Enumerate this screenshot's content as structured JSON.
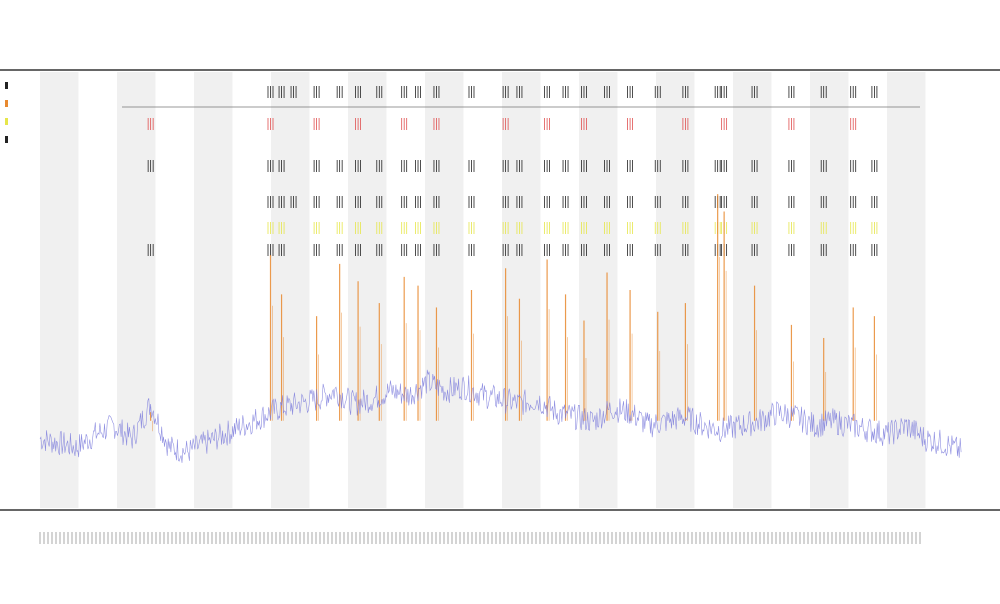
{
  "chart_data": {
    "type": "line",
    "title": "",
    "subtitle_lines": [
      "",
      ""
    ],
    "xlabel": "",
    "ylabel": "",
    "grid": false,
    "legend_placement": "top-left",
    "band_color": "#f0f0f0",
    "colors": {
      "signal": "#7b7bdc",
      "spikes": "#e8892f",
      "marker_black": "#222222",
      "marker_red": "#e05050",
      "marker_yellow": "#e6e64a",
      "axis": "#333333"
    },
    "x_range": [
      0,
      1000
    ],
    "y_range": [
      0,
      100
    ],
    "band_count": 12,
    "series": [
      {
        "name": "",
        "x": [
          0,
          20,
          40,
          60,
          80,
          100,
          120,
          140,
          160,
          180,
          200,
          220,
          240,
          260,
          280,
          300,
          320,
          340,
          360,
          380,
          400,
          420,
          440,
          460,
          480,
          500,
          520,
          540,
          560,
          580,
          600,
          620,
          640,
          660,
          680,
          700,
          720,
          740,
          760,
          780,
          800,
          820,
          840,
          860,
          880,
          900,
          920,
          940,
          960,
          980,
          1000
        ],
        "values": [
          15,
          14,
          13,
          16,
          18,
          15,
          23,
          13,
          12,
          14,
          16,
          18,
          20,
          22,
          23,
          24,
          26,
          23,
          24,
          26,
          25,
          28,
          26,
          27,
          25,
          24,
          23,
          24,
          21,
          20,
          19,
          22,
          21,
          18,
          19,
          20,
          18,
          17,
          18,
          19,
          21,
          20,
          18,
          19,
          18,
          17,
          16,
          18,
          15,
          14,
          12
        ]
      }
    ],
    "spike_events": [
      {
        "x": 120,
        "height": 22
      },
      {
        "x": 250,
        "height": 58
      },
      {
        "x": 262,
        "height": 49
      },
      {
        "x": 300,
        "height": 44
      },
      {
        "x": 325,
        "height": 56
      },
      {
        "x": 345,
        "height": 52
      },
      {
        "x": 368,
        "height": 47
      },
      {
        "x": 395,
        "height": 53
      },
      {
        "x": 410,
        "height": 51
      },
      {
        "x": 430,
        "height": 46
      },
      {
        "x": 468,
        "height": 50
      },
      {
        "x": 505,
        "height": 55
      },
      {
        "x": 520,
        "height": 48
      },
      {
        "x": 550,
        "height": 57
      },
      {
        "x": 570,
        "height": 49
      },
      {
        "x": 590,
        "height": 43
      },
      {
        "x": 615,
        "height": 54
      },
      {
        "x": 640,
        "height": 50
      },
      {
        "x": 670,
        "height": 45
      },
      {
        "x": 700,
        "height": 47
      },
      {
        "x": 735,
        "height": 72
      },
      {
        "x": 742,
        "height": 68
      },
      {
        "x": 775,
        "height": 51
      },
      {
        "x": 815,
        "height": 42
      },
      {
        "x": 850,
        "height": 39
      },
      {
        "x": 882,
        "height": 46
      },
      {
        "x": 905,
        "height": 44
      }
    ],
    "marker_rows": [
      {
        "name": "",
        "color": "#222222",
        "x": [
          250,
          262,
          275,
          300,
          325,
          345,
          368,
          395,
          410,
          430,
          468,
          505,
          520,
          550,
          570,
          590,
          615,
          640,
          670,
          700,
          735,
          742,
          775,
          815,
          850,
          882,
          905
        ]
      },
      {
        "name": "",
        "color": "#e05050",
        "x": [
          120,
          250,
          300,
          345,
          395,
          430,
          505,
          550,
          590,
          640,
          700,
          742,
          815,
          882
        ]
      },
      {
        "name": "",
        "color": "#222222",
        "x": [
          120,
          250,
          262,
          300,
          325,
          345,
          368,
          395,
          410,
          430,
          468,
          505,
          520,
          550,
          570,
          590,
          615,
          640,
          670,
          700,
          735,
          742,
          775,
          815,
          850,
          882,
          905
        ]
      },
      {
        "name": "",
        "color": "#222222",
        "x": [
          250,
          262,
          275,
          300,
          325,
          345,
          368,
          395,
          410,
          430,
          468,
          505,
          520,
          550,
          570,
          590,
          615,
          640,
          670,
          700,
          735,
          742,
          775,
          815,
          850,
          882,
          905
        ]
      },
      {
        "name": "",
        "color": "#e6e64a",
        "x": [
          250,
          262,
          300,
          325,
          345,
          368,
          395,
          410,
          430,
          468,
          505,
          520,
          550,
          570,
          590,
          615,
          640,
          670,
          700,
          735,
          742,
          775,
          815,
          850,
          882,
          905
        ]
      },
      {
        "name": "",
        "color": "#222222",
        "x": [
          120,
          250,
          262,
          300,
          325,
          345,
          368,
          395,
          410,
          430,
          468,
          505,
          520,
          550,
          570,
          590,
          615,
          640,
          670,
          700,
          735,
          742,
          775,
          815,
          850,
          882,
          905
        ]
      }
    ],
    "legend_entries": [
      "",
      "",
      "",
      ""
    ]
  }
}
